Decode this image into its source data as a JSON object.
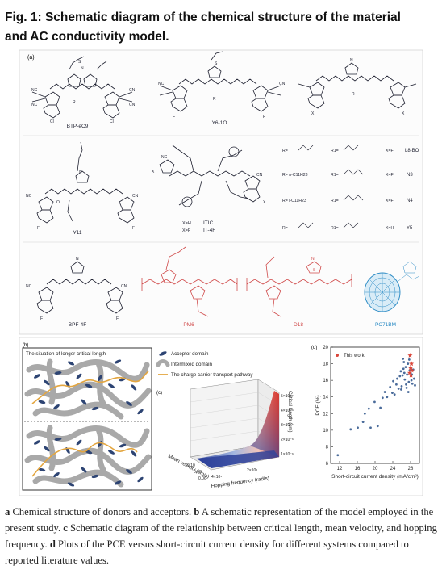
{
  "figure_title": "Fig. 1: Schematic diagram of the chemical structure of the material and AC conductivity model.",
  "panels": {
    "a": {
      "label": "(a)",
      "molecules": [
        "BTP-eC9",
        "Y6-1O",
        "Y11",
        "ITIC",
        "IT-4F",
        "BPF-4F",
        "PM6",
        "D18",
        "PC71BM"
      ],
      "itic_rows": [
        {
          "x": "X=H",
          "name": "ITIC"
        },
        {
          "x": "X=F",
          "name": "IT-4F"
        }
      ],
      "y_series_table": [
        {
          "r": "R=",
          "r1": "R1=",
          "x": "X=F",
          "name": "L8-BO"
        },
        {
          "r": "R= n-C11H23",
          "r1": "R1=",
          "x": "X=F",
          "name": "N3"
        },
        {
          "r": "R= i-C11H23",
          "r1": "R1=",
          "x": "X=F",
          "name": "N4"
        },
        {
          "r": "R=",
          "r1": "R1=",
          "x": "X=H",
          "name": "Y5"
        }
      ],
      "atoms": {
        "S": "S",
        "N": "N",
        "F": "F",
        "Cl": "Cl",
        "O": "O",
        "NC": "NC",
        "CN": "CN",
        "R": "R",
        "X": "X"
      }
    },
    "b": {
      "label": "(b)",
      "title": "The situation of longer critical length",
      "legend": [
        "Acceptor domain",
        "Intermixed domain",
        "The charge carrier transport pathway"
      ]
    },
    "c": {
      "label": "(c)",
      "zlabel": "Critical length (cm)",
      "xlabel": "Hopping frequency (rad/s)",
      "ylabel": "Mean velocity (cm/s)",
      "zticks": [
        "5×10⁻⁶",
        "4×10⁻⁶",
        "3×10⁻⁶",
        "2×10⁻⁶",
        "1×10⁻⁶"
      ],
      "xticks": [
        "4×10⁵",
        "2×10⁵"
      ],
      "yticks": [
        "0.10",
        "0.08",
        "0.06"
      ]
    },
    "d": {
      "label": "(d)",
      "legend": "This work"
    }
  },
  "chart_data": {
    "type": "scatter",
    "xlabel": "Short-circuit current density (mA/cm²)",
    "ylabel": "PCE (%)",
    "xlim": [
      10,
      30
    ],
    "ylim": [
      6,
      20
    ],
    "xticks": [
      12,
      16,
      20,
      24,
      28
    ],
    "yticks": [
      6,
      8,
      10,
      12,
      14,
      16,
      18,
      20
    ],
    "series": [
      {
        "name": "",
        "color": "#4a6b9a",
        "x": [
          11.6,
          14.5,
          16.1,
          17.3,
          17.7,
          18.6,
          19.0,
          19.9,
          20.6,
          21.2,
          21.7,
          22.2,
          22.7,
          23.4,
          23.9,
          24.1,
          24.4,
          24.8,
          25.0,
          25.3,
          25.6,
          25.8,
          26.0,
          26.2,
          26.4,
          26.5,
          26.7,
          26.9,
          27.0,
          27.2,
          27.4,
          27.6,
          27.8,
          28.0,
          28.2,
          28.4,
          28.6,
          28.8,
          29.0,
          25.9,
          26.6,
          27.1,
          27.7,
          28.3,
          26.3,
          27.5
        ],
        "y": [
          7.0,
          10.1,
          10.3,
          11.0,
          12.0,
          12.6,
          10.3,
          13.4,
          10.5,
          12.7,
          13.9,
          14.6,
          14.0,
          15.2,
          14.5,
          15.9,
          14.3,
          15.5,
          16.2,
          15.0,
          16.5,
          17.1,
          15.3,
          16.6,
          17.4,
          18.2,
          16.1,
          17.6,
          15.5,
          16.7,
          18.0,
          15.8,
          17.2,
          16.9,
          16.0,
          15.6,
          17.3,
          16.2,
          15.4,
          14.9,
          16.9,
          15.1,
          18.5,
          16.7,
          18.6,
          14.6
        ]
      },
      {
        "name": "This work",
        "color": "#d9463a",
        "x": [
          27.9,
          28.2,
          28.0,
          28.3,
          27.8,
          28.1
        ],
        "y": [
          19.0,
          18.0,
          17.5,
          17.2,
          16.9,
          16.6
        ]
      }
    ]
  },
  "caption": {
    "a_label": "a",
    "a_text": " Chemical structure of donors and acceptors. ",
    "b_label": "b",
    "b_text": " A schematic representation of the model employed in the present study. ",
    "c_label": "c",
    "c_text": " Schematic diagram of the relationship between critical length, mean velocity, and hopping frequency. ",
    "d_label": "d",
    "d_text": " Plots of the PCE versus short-circuit current density for different systems compared to reported literature values."
  }
}
